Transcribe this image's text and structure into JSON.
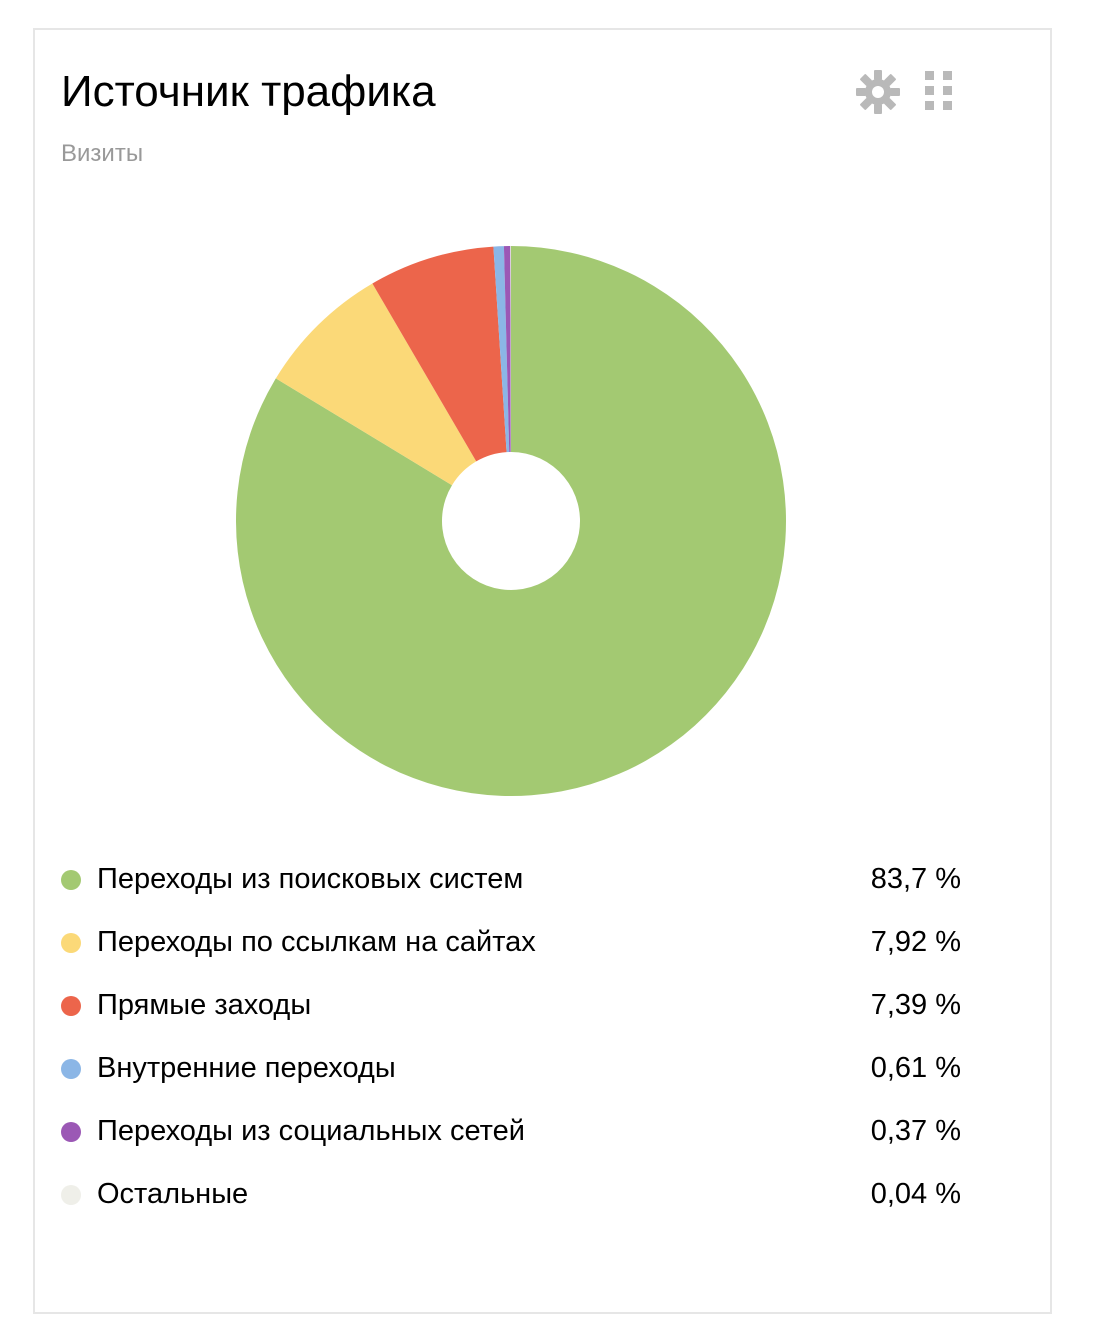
{
  "widget": {
    "title": "Источник трафика",
    "subtitle": "Визиты",
    "icons": {
      "settings": "gear-icon",
      "drag": "grip-icon"
    }
  },
  "chart_data": {
    "type": "pie",
    "donut": true,
    "title": "Источник трафика",
    "subtitle": "Визиты",
    "legend_position": "bottom",
    "slices": [
      {
        "label": "Переходы из поисковых систем",
        "value": 83.7,
        "display": "83,7 %",
        "color": "#a3c972"
      },
      {
        "label": "Переходы по ссылкам на сайтах",
        "value": 7.92,
        "display": "7,92 %",
        "color": "#fbd978"
      },
      {
        "label": "Прямые заходы",
        "value": 7.39,
        "display": "7,39 %",
        "color": "#ec654b"
      },
      {
        "label": "Внутренние переходы",
        "value": 0.61,
        "display": "0,61 %",
        "color": "#8bb6e6"
      },
      {
        "label": "Переходы из социальных сетей",
        "value": 0.37,
        "display": "0,37 %",
        "color": "#9b58b5"
      },
      {
        "label": "Остальные",
        "value": 0.04,
        "display": "0,04 %",
        "color": "#efefe9"
      }
    ]
  }
}
